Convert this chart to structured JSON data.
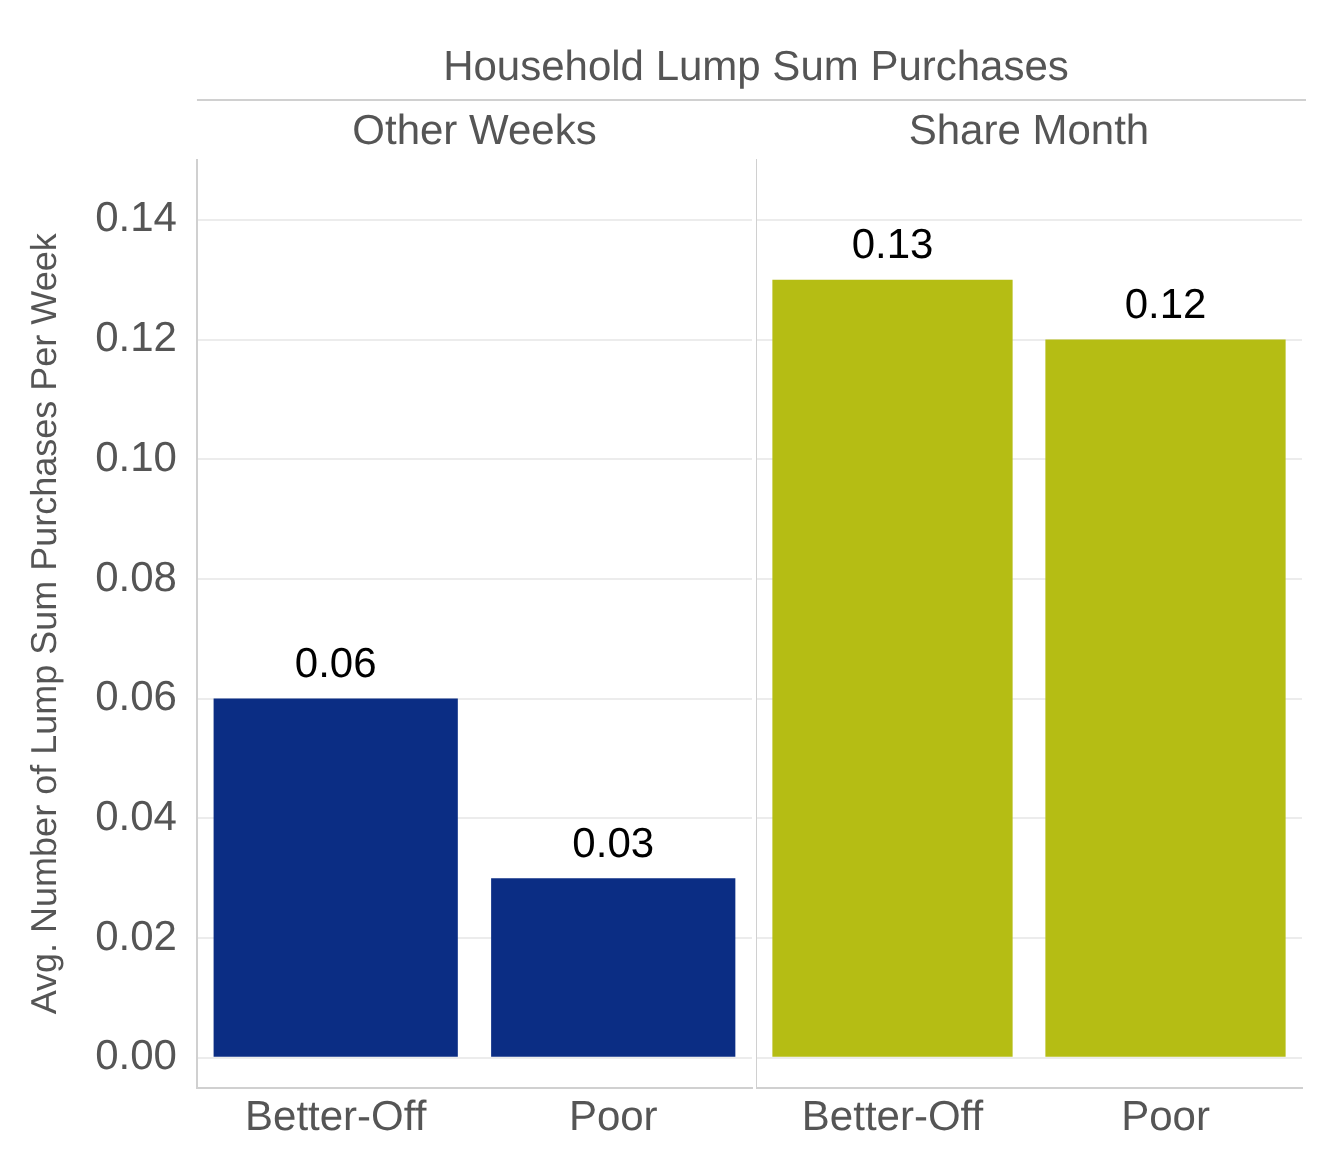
{
  "chart_data": [
    {
      "type": "bar",
      "title": "Household Lump Sum Purchases",
      "subtitle": "Other Weeks",
      "ylabel": "Avg. Number of Lump Sum Purchases Per Week",
      "categories": [
        "Better-Off",
        "Poor"
      ],
      "values": [
        0.06,
        0.03
      ],
      "color": "#0b2d84",
      "ylim": [
        -0.005,
        0.15
      ],
      "yticks": [
        {
          "value": 0,
          "label": "0.00"
        },
        {
          "value": 0.02,
          "label": "0.02"
        },
        {
          "value": 0.04,
          "label": "0.04"
        },
        {
          "value": 0.06,
          "label": "0.06"
        },
        {
          "value": 0.08,
          "label": "0.08"
        },
        {
          "value": 0.1,
          "label": "0.10"
        },
        {
          "value": 0.12,
          "label": "0.12"
        },
        {
          "value": 0.14,
          "label": "0.14"
        }
      ],
      "grid": "y",
      "data_labels": true
    },
    {
      "type": "bar",
      "subtitle": "Share Month",
      "categories": [
        "Better-Off",
        "Poor"
      ],
      "values": [
        0.13,
        0.12
      ],
      "color": "#b5bd14",
      "ylim": [
        -0.005,
        0.15
      ],
      "yticks": [
        0,
        0.02,
        0.04,
        0.06,
        0.08,
        0.1,
        0.12,
        0.14
      ],
      "grid": "y",
      "data_labels": true,
      "tick_labels": "x"
    }
  ]
}
